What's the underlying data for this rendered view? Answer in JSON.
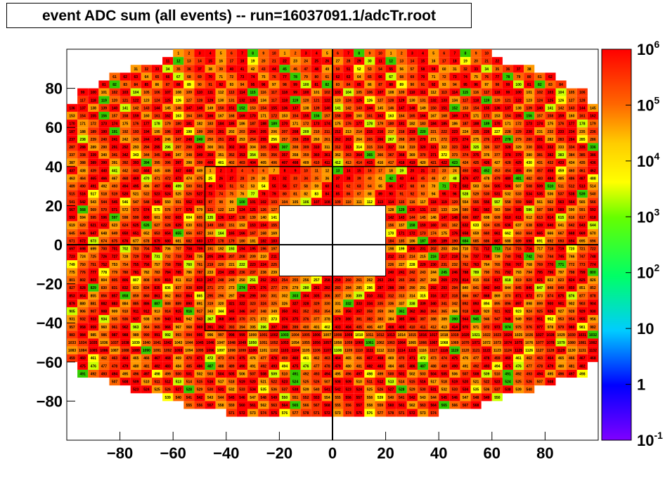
{
  "chart_data": {
    "type": "heatmap",
    "title": "event ADC sum (all events) -- run=16037091.1/adcTr.root",
    "xlabel": "",
    "ylabel": "",
    "xlim": [
      -100,
      100
    ],
    "ylim": [
      -100,
      100
    ],
    "x_ticks": [
      -80,
      -60,
      -40,
      -20,
      0,
      20,
      40,
      60,
      80
    ],
    "y_ticks": [
      80,
      60,
      40,
      20,
      0,
      -20,
      -40,
      -60,
      -80
    ],
    "palette": {
      "scale": "log",
      "min_exponent": -1,
      "max_exponent": 6,
      "labels": [
        {
          "base": "10",
          "exp": "6",
          "value": 1000000
        },
        {
          "base": "10",
          "exp": "5",
          "value": 100000
        },
        {
          "base": "10",
          "exp": "4",
          "value": 10000
        },
        {
          "base": "10",
          "exp": "3",
          "value": 1000
        },
        {
          "base": "10",
          "exp": "2",
          "value": 100
        },
        {
          "base": "10",
          "exp": "",
          "value": 10
        },
        {
          "base": "1",
          "exp": "",
          "value": 1
        },
        {
          "base": "10",
          "exp": "-1",
          "value": 0.1
        }
      ]
    },
    "colors": {
      "red": "#fe0000",
      "red_orange": "#ff3300",
      "orange": "#ff6600",
      "light_orange": "#ff9900",
      "yellow_orange": "#ffcc00",
      "yellow": "#ffff00",
      "yellow_green": "#ccff00",
      "green": "#33cc00",
      "blue": "#0033ff",
      "white": "#ffffff"
    },
    "outer_rows": [
      {
        "y": 96,
        "first": 1,
        "count": 10,
        "x0": -60,
        "x1": 60
      },
      {
        "y": 92,
        "first": 11,
        "count": 20,
        "x0": -64,
        "x1": 64
      },
      {
        "y": 88,
        "first": 31,
        "count": 30,
        "x0": -76,
        "x1": 76
      },
      {
        "y": 84,
        "first": 61,
        "count": 20,
        "x0": -84,
        "x1": 84
      },
      {
        "y": 80,
        "first": 81,
        "count": 20,
        "x0": -88,
        "x1": 88
      },
      {
        "y": 76,
        "first": 99,
        "count": 20,
        "x0": -96,
        "x1": 96
      },
      {
        "y": 72,
        "first": 117,
        "count": 18,
        "x0": -96,
        "x1": 96
      },
      {
        "y": 68,
        "first": 136,
        "count": 20,
        "x0": -100,
        "x1": 100
      },
      {
        "y": 64,
        "first": 153,
        "count": 20,
        "x0": -100,
        "x1": 100
      },
      {
        "y": 60,
        "first": 170,
        "count": 20,
        "x0": -100,
        "x1": 100
      },
      {
        "y": -60,
        "first": 459,
        "count": 20,
        "x0": -100,
        "x1": 100
      },
      {
        "y": -64,
        "first": 475,
        "count": 20,
        "x0": -96,
        "x1": 96
      },
      {
        "y": -68,
        "first": 491,
        "count": 20,
        "x0": -96,
        "x1": 96
      },
      {
        "y": -72,
        "first": 507,
        "count": 20,
        "x0": -84,
        "x1": 84
      },
      {
        "y": -76,
        "first": 523,
        "count": 20,
        "x0": -76,
        "x1": 76
      },
      {
        "y": -80,
        "first": 539,
        "count": 20,
        "x0": -64,
        "x1": 64
      },
      {
        "y": -84,
        "first": 555,
        "count": 14,
        "x0": -56,
        "x1": 56
      },
      {
        "y": -88,
        "first": 571,
        "count": 8,
        "x0": -40,
        "x1": 40
      }
    ],
    "inner_box": {
      "x0": -48,
      "x1": 48,
      "y0": -44,
      "y1": 40
    },
    "center_gap": {
      "x0": -20,
      "x1": 20,
      "y0": -16,
      "y1": 20
    }
  }
}
